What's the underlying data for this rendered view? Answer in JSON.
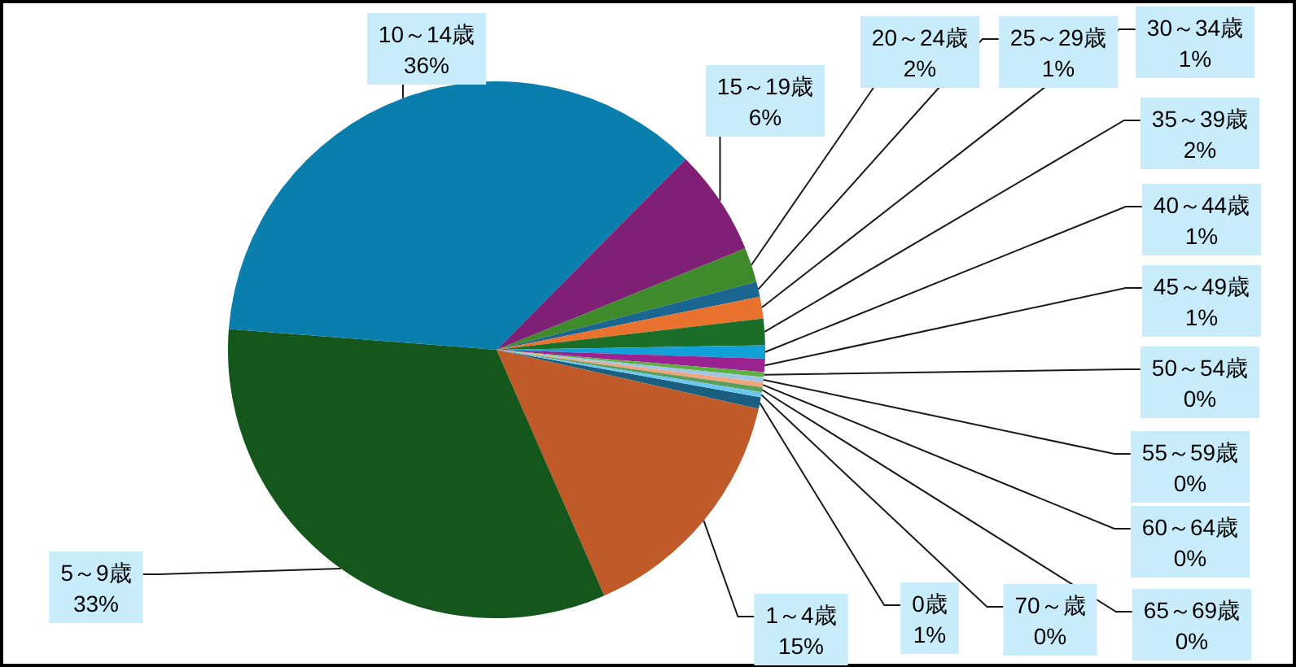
{
  "chart_data": {
    "type": "pie",
    "categories": [
      "0歳",
      "1～4歳",
      "5～9歳",
      "10～14歳",
      "15～19歳",
      "20～24歳",
      "25～29歳",
      "30～34歳",
      "35～39歳",
      "40～44歳",
      "45～49歳",
      "50～54歳",
      "55～59歳",
      "60～64歳",
      "65～69歳",
      "70～歳"
    ],
    "values": [
      0.7,
      14.9,
      32.8,
      36.2,
      6.4,
      2.1,
      0.9,
      1.3,
      1.6,
      0.8,
      0.8,
      0.3,
      0.3,
      0.3,
      0.3,
      0.3
    ],
    "value_labels": [
      "1%",
      "15%",
      "33%",
      "36%",
      "6%",
      "2%",
      "1%",
      "1%",
      "2%",
      "1%",
      "1%",
      "0%",
      "0%",
      "0%",
      "0%",
      "0%"
    ],
    "colors": [
      "#1b5f80",
      "#c05a28",
      "#14561b",
      "#0a7fae",
      "#7f1f76",
      "#3f8a2a",
      "#1a6690",
      "#e8722e",
      "#1b6e28",
      "#12a0d8",
      "#9b2391",
      "#5fb043",
      "#9fc6e6",
      "#f2a57a",
      "#5a9e5e",
      "#6cc6ee"
    ]
  }
}
